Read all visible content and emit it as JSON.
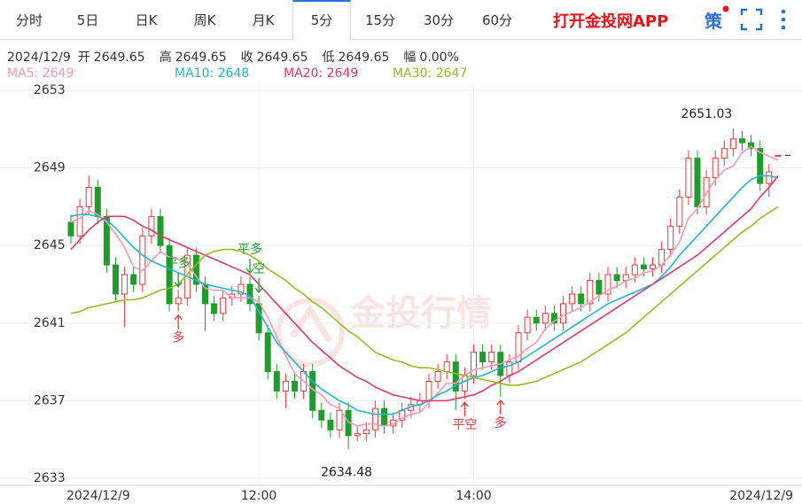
{
  "tabs": [
    "分时",
    "5日",
    "日K",
    "周K",
    "月K",
    "5分",
    "15分",
    "30分",
    "60分"
  ],
  "active_tab": 5,
  "app_link": "打开金投网APP",
  "strategy_icon": "策",
  "chart_data": {
    "type": "candlestick",
    "info": {
      "date": "2024/12/9",
      "fields": [
        {
          "label": "开",
          "value": 2649.65
        },
        {
          "label": "高",
          "value": 2649.65
        },
        {
          "label": "收",
          "value": 2649.65
        },
        {
          "label": "低",
          "value": 2649.65
        },
        {
          "label": "幅",
          "value": 0,
          "value_label": "0.00%"
        }
      ]
    },
    "watermark": "金投行情",
    "categories": [
      "2024/12/9",
      null,
      null,
      null,
      null,
      null,
      null,
      null,
      null,
      null,
      null,
      null,
      null,
      null,
      null,
      null,
      null,
      null,
      null,
      null,
      null,
      "12:00",
      null,
      null,
      null,
      null,
      null,
      null,
      null,
      null,
      null,
      null,
      null,
      null,
      null,
      null,
      null,
      null,
      null,
      null,
      null,
      null,
      null,
      null,
      null,
      "14:00",
      null,
      null,
      null,
      null,
      null,
      null,
      null,
      null,
      null,
      null,
      null,
      null,
      null,
      null,
      null,
      null,
      null,
      null,
      null,
      null,
      null,
      null,
      null,
      null,
      null,
      null,
      null,
      null,
      null,
      null,
      null,
      null,
      null,
      "2024/12/9"
    ],
    "open": [
      2646.2,
      2645.5,
      2647,
      2648,
      2646.5,
      2644,
      2642.5,
      2643.5,
      2643,
      2645.5,
      2646.5,
      2645,
      2642,
      2642.3,
      2644.5,
      2643,
      2642,
      2641.5,
      2642.3,
      2642.5,
      2643,
      2642,
      2640.5,
      2638.5,
      2637.5,
      2638,
      2637.5,
      2638.5,
      2636.5,
      2636,
      2635.5,
      2636.5,
      2635.2,
      2635.3,
      2635.5,
      2636.6,
      2635.7,
      2636,
      2636.5,
      2636.8,
      2637,
      2638,
      2638.5,
      2639,
      2637.5,
      2638.3,
      2639.5,
      2639,
      2639.5,
      2638.3,
      2639,
      2640.5,
      2641.3,
      2641,
      2641.5,
      2641,
      2642,
      2642.5,
      2642,
      2643.2,
      2642.5,
      2643.5,
      2643.2,
      2643.5,
      2644,
      2643.8,
      2644,
      2644.8,
      2646,
      2647.5,
      2649.5,
      2647,
      2648.5,
      2649.5,
      2650,
      2650.5,
      2650.3,
      2650,
      2648.2,
      2649.65
    ],
    "high": [
      2646.6,
      2647.4,
      2648.6,
      2648.4,
      2646.9,
      2644.4,
      2643.9,
      2643.9,
      2645.9,
      2646.9,
      2646.9,
      2645.4,
      2642.7,
      2644.9,
      2644.9,
      2643.4,
      2642.4,
      2642.7,
      2642.9,
      2643.4,
      2643.4,
      2642.4,
      2640.9,
      2638.9,
      2638.4,
      2638.4,
      2638.9,
      2638.9,
      2636.9,
      2636.4,
      2636.9,
      2636.9,
      2635.7,
      2635.9,
      2637,
      2637,
      2636.4,
      2636.9,
      2637.2,
      2637.4,
      2638.4,
      2638.9,
      2639.4,
      2639.4,
      2638.7,
      2639.9,
      2639.9,
      2639.9,
      2639.9,
      2639.4,
      2640.9,
      2641.7,
      2641.7,
      2641.9,
      2641.9,
      2642.4,
      2642.9,
      2642.9,
      2643.6,
      2643.6,
      2643.9,
      2643.9,
      2643.9,
      2644.4,
      2644.4,
      2644.4,
      2645.2,
      2646.4,
      2647.9,
      2649.9,
      2649.9,
      2648.9,
      2649.9,
      2650.4,
      2651.03,
      2650.9,
      2650.7,
      2650.4,
      2649.2,
      2649.65
    ],
    "low": [
      2645.1,
      2645.1,
      2646.6,
      2646.1,
      2643.6,
      2642.1,
      2640.8,
      2642.6,
      2642.6,
      2645.1,
      2644.6,
      2641.6,
      2641.6,
      2641.9,
      2642.6,
      2640.6,
      2641.1,
      2641.1,
      2641.9,
      2642.1,
      2641.6,
      2640.1,
      2638.1,
      2637.1,
      2636.6,
      2637.1,
      2637.1,
      2636.1,
      2635.6,
      2635.1,
      2635.1,
      2634.48,
      2634.9,
      2634.9,
      2635.1,
      2635.3,
      2635.3,
      2635.6,
      2636.1,
      2636.4,
      2636.6,
      2637.6,
      2638.1,
      2636.5,
      2637.1,
      2637.9,
      2638.6,
      2638.6,
      2637.2,
      2637.9,
      2638.6,
      2640.1,
      2640.6,
      2640.6,
      2640.6,
      2640.6,
      2641.6,
      2641.6,
      2641.6,
      2642.1,
      2642.1,
      2642.8,
      2642.8,
      2643.1,
      2643.4,
      2643.4,
      2643.6,
      2644.4,
      2645.6,
      2647.1,
      2646.6,
      2646.6,
      2648.1,
      2649.1,
      2649.6,
      2649.9,
      2649.6,
      2647.8,
      2647.5,
      2649.65
    ],
    "close": [
      2645.5,
      2647,
      2648,
      2646.5,
      2644,
      2642.5,
      2643.5,
      2643,
      2645.5,
      2646.5,
      2645,
      2642,
      2642.3,
      2644.5,
      2643,
      2642,
      2641.5,
      2642.3,
      2642.5,
      2643,
      2642,
      2640.5,
      2638.5,
      2637.5,
      2638,
      2637.5,
      2638.5,
      2636.5,
      2636,
      2635.5,
      2636.5,
      2635.2,
      2635.3,
      2635.5,
      2636.6,
      2635.7,
      2636,
      2636.5,
      2636.8,
      2637,
      2638,
      2638.5,
      2639,
      2637.5,
      2638.3,
      2639.5,
      2639,
      2639.5,
      2638.3,
      2639,
      2640.5,
      2641.3,
      2641,
      2641.5,
      2641,
      2642,
      2642.5,
      2642,
      2643.2,
      2642.5,
      2643.5,
      2643.2,
      2643.5,
      2644,
      2643.8,
      2644,
      2644.8,
      2646,
      2647.5,
      2649.5,
      2647,
      2648.5,
      2649.5,
      2650,
      2650.5,
      2650.3,
      2650,
      2648.2,
      2648.8,
      2649.65
    ],
    "up_color": "#e8383d",
    "down_color": "#1f9d2c",
    "series": [
      {
        "name": "MA5: 2649",
        "color": "#f29bb5",
        "values": [
          2646.2,
          2646.4,
          2646.8,
          2646.6,
          2646.2,
          2645.6,
          2644.9,
          2643.9,
          2643.7,
          2644.2,
          2644.7,
          2644.4,
          2644.3,
          2644.1,
          2643.4,
          2642.8,
          2642.7,
          2642.7,
          2642.3,
          2642.3,
          2642.3,
          2642.1,
          2641.3,
          2640.3,
          2639.3,
          2638.4,
          2638.0,
          2637.6,
          2637.3,
          2636.8,
          2636.6,
          2635.9,
          2635.7,
          2635.8,
          2635.8,
          2635.7,
          2635.8,
          2636.1,
          2636.3,
          2636.4,
          2636.9,
          2637.4,
          2637.9,
          2637.9,
          2638.3,
          2638.6,
          2638.7,
          2638.8,
          2638.9,
          2639.1,
          2639.3,
          2639.7,
          2640.0,
          2640.7,
          2641.1,
          2641.4,
          2641.6,
          2641.8,
          2642.1,
          2642.4,
          2642.7,
          2642.9,
          2643.2,
          2643.3,
          2643.6,
          2643.7,
          2644.0,
          2644.5,
          2645.2,
          2646.4,
          2646.9,
          2647.7,
          2648.4,
          2648.9,
          2649.1,
          2649.8,
          2650.1,
          2649.8,
          2649.6,
          2649.4
        ]
      },
      {
        "name": "MA10: 2648",
        "color": "#22b5d1",
        "values": [
          2646.5,
          2646.6,
          2646.6,
          2646.5,
          2646.3,
          2645.9,
          2645.4,
          2644.9,
          2644.5,
          2644.2,
          2644.0,
          2643.8,
          2643.6,
          2643.4,
          2643.2,
          2643.0,
          2642.9,
          2642.8,
          2642.7,
          2642.6,
          2642.4,
          2641.6,
          2640.8,
          2640.0,
          2639.5,
          2639.0,
          2638.5,
          2638.0,
          2637.6,
          2637.3,
          2637.0,
          2636.8,
          2636.5,
          2636.4,
          2636.3,
          2636.3,
          2636.3,
          2636.5,
          2636.7,
          2636.8,
          2637.0,
          2637.3,
          2637.5,
          2637.8,
          2638.0,
          2638.2,
          2638.3,
          2638.5,
          2638.7,
          2638.8,
          2639.0,
          2639.3,
          2639.6,
          2639.9,
          2640.2,
          2640.5,
          2640.8,
          2641.1,
          2641.4,
          2641.7,
          2642.0,
          2642.2,
          2642.4,
          2642.6,
          2642.8,
          2643.0,
          2643.4,
          2643.9,
          2644.5,
          2645.0,
          2645.5,
          2646.0,
          2646.5,
          2647.0,
          2647.5,
          2648.0,
          2648.4,
          2648.6,
          2648.6,
          2648.5
        ]
      },
      {
        "name": "MA20: 2649",
        "color": "#df3a6d",
        "values": [
          2644.8,
          2645.3,
          2645.8,
          2646.2,
          2646.5,
          2646.5,
          2646.5,
          2646.3,
          2646.0,
          2645.8,
          2645.5,
          2645.3,
          2645.1,
          2644.9,
          2644.7,
          2644.5,
          2644.3,
          2644.1,
          2643.9,
          2643.7,
          2643.5,
          2643.0,
          2642.5,
          2642.0,
          2641.5,
          2641.0,
          2640.5,
          2640.0,
          2639.6,
          2639.2,
          2638.8,
          2638.5,
          2638.2,
          2638.0,
          2637.7,
          2637.5,
          2637.3,
          2637.2,
          2637.1,
          2637.0,
          2637.0,
          2637.0,
          2637.0,
          2637.1,
          2637.2,
          2637.3,
          2637.5,
          2637.8,
          2638.0,
          2638.3,
          2638.5,
          2638.8,
          2639.1,
          2639.4,
          2639.7,
          2640.0,
          2640.3,
          2640.6,
          2640.9,
          2641.2,
          2641.5,
          2641.8,
          2642.1,
          2642.4,
          2642.7,
          2643.0,
          2643.3,
          2643.6,
          2643.9,
          2644.2,
          2644.5,
          2644.9,
          2645.3,
          2645.7,
          2646.1,
          2646.5,
          2646.9,
          2647.5,
          2648.0,
          2648.6
        ]
      },
      {
        "name": "MA30: 2647",
        "color": "#92bd22",
        "values": [
          2641.5,
          2641.6,
          2641.8,
          2641.9,
          2642.0,
          2642.1,
          2642.2,
          2642.2,
          2642.3,
          2642.5,
          2642.7,
          2642.8,
          2643.0,
          2643.5,
          2644.0,
          2644.5,
          2644.7,
          2644.8,
          2644.8,
          2644.7,
          2644.5,
          2644.2,
          2643.8,
          2643.5,
          2643.2,
          2642.8,
          2642.5,
          2642.1,
          2641.8,
          2641.4,
          2641.0,
          2640.6,
          2640.3,
          2639.9,
          2639.5,
          2639.3,
          2639.1,
          2639.0,
          2638.8,
          2638.7,
          2638.7,
          2638.6,
          2638.5,
          2638.4,
          2638.3,
          2638.2,
          2638.1,
          2638.0,
          2637.9,
          2637.8,
          2637.8,
          2637.9,
          2638.0,
          2638.2,
          2638.4,
          2638.6,
          2638.8,
          2639.0,
          2639.3,
          2639.6,
          2639.9,
          2640.2,
          2640.5,
          2640.9,
          2641.3,
          2641.7,
          2642.1,
          2642.5,
          2642.9,
          2643.3,
          2643.7,
          2644.1,
          2644.5,
          2644.9,
          2645.3,
          2645.7,
          2646.0,
          2646.4,
          2646.7,
          2647.0
        ]
      }
    ],
    "signals": [
      {
        "text": "平多",
        "index": 12,
        "side": "above",
        "color": "#1f9d2c"
      },
      {
        "text": "多",
        "index": 12,
        "side": "below",
        "color": "#e8383d"
      },
      {
        "text": "平多",
        "index": 20,
        "side": "above",
        "color": "#1f9d2c"
      },
      {
        "text": "空",
        "index": 21,
        "side": "above",
        "color": "#1f9d2c"
      },
      {
        "text": "平空",
        "index": 44,
        "side": "below",
        "color": "#e8383d"
      },
      {
        "text": "多",
        "index": 48,
        "side": "below",
        "color": "#e8383d"
      }
    ],
    "ylim": [
      2633,
      2653
    ],
    "yticks": [
      2633,
      2637,
      2641,
      2645,
      2649,
      2653
    ],
    "grid": true
  }
}
